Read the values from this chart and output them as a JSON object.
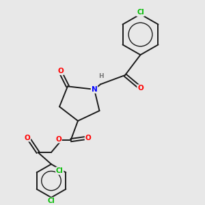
{
  "background_color": "#e8e8e8",
  "bond_color": "#1a1a1a",
  "atom_colors": {
    "O": "#ff0000",
    "N": "#0000ff",
    "Cl": "#00bb00",
    "H": "#777777",
    "C": "#1a1a1a"
  },
  "figure_size": [
    3.0,
    3.0
  ],
  "dpi": 100
}
